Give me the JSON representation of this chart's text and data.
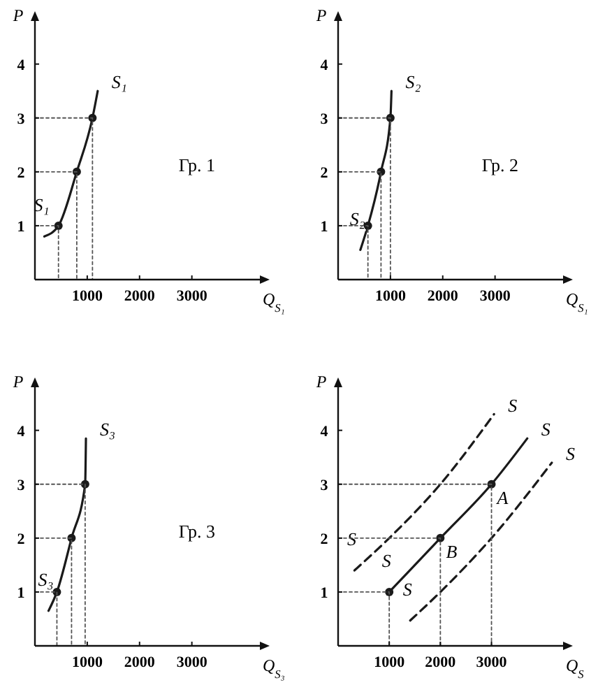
{
  "chart_data": [
    {
      "type": "line",
      "xlabel": "Q$_{S₁}$",
      "ylabel": "P",
      "xlim": [
        0,
        4300
      ],
      "ylim": [
        0,
        4.8
      ],
      "xticks": [
        1000,
        2000,
        3000
      ],
      "yticks": [
        1,
        2,
        3,
        4
      ],
      "annotations": [
        "Гр. 1"
      ],
      "series": [
        {
          "name": "S₁",
          "marker": "none",
          "color": "#1a1a1a",
          "x": [
            180,
            450,
            800,
            1100,
            1200
          ],
          "values": [
            0.8,
            1,
            2,
            3,
            3.5
          ]
        },
        {
          "type": "scatter",
          "marker": "circle",
          "color": "#1a1a1a",
          "x": [
            450,
            800,
            1100
          ],
          "values": [
            1,
            2,
            3
          ]
        },
        {
          "marker": "none",
          "line_style": "dotted",
          "color": "#555555",
          "x": [
            0,
            450,
            450
          ],
          "values": [
            1,
            1,
            0
          ]
        },
        {
          "marker": "none",
          "line_style": "dotted",
          "color": "#555555",
          "x": [
            0,
            800,
            800
          ],
          "values": [
            2,
            2,
            0
          ]
        },
        {
          "marker": "none",
          "line_style": "dotted",
          "color": "#555555",
          "x": [
            0,
            1100,
            1100
          ],
          "values": [
            3,
            3,
            0
          ]
        }
      ]
    },
    {
      "type": "line",
      "xlabel": "Q$_{S₁}$",
      "ylabel": "P",
      "xlim": [
        0,
        4300
      ],
      "ylim": [
        0,
        4.8
      ],
      "xticks": [
        1000,
        2000,
        3000
      ],
      "yticks": [
        1,
        2,
        3,
        4
      ],
      "annotations": [
        "Гр. 2"
      ],
      "series": [
        {
          "name": "S₂",
          "marker": "none",
          "color": "#1a1a1a",
          "x": [
            425,
            570,
            820,
            1000,
            1020
          ],
          "values": [
            0.55,
            1,
            2,
            3,
            3.5
          ]
        },
        {
          "type": "scatter",
          "marker": "circle",
          "color": "#1a1a1a",
          "x": [
            570,
            820,
            1000
          ],
          "values": [
            1,
            2,
            3
          ]
        },
        {
          "marker": "none",
          "line_style": "dotted",
          "color": "#555555",
          "x": [
            0,
            570,
            570
          ],
          "values": [
            1,
            1,
            0
          ]
        },
        {
          "marker": "none",
          "line_style": "dotted",
          "color": "#555555",
          "x": [
            0,
            820,
            820
          ],
          "values": [
            2,
            2,
            0
          ]
        },
        {
          "marker": "none",
          "line_style": "dotted",
          "color": "#555555",
          "x": [
            0,
            1000,
            1000
          ],
          "values": [
            3,
            3,
            0
          ]
        }
      ]
    },
    {
      "type": "line",
      "xlabel": "Q$_{S₃}$",
      "ylabel": "P",
      "xlim": [
        0,
        4300
      ],
      "ylim": [
        0,
        4.8
      ],
      "xticks": [
        1000,
        2000,
        3000
      ],
      "yticks": [
        1,
        2,
        3,
        4
      ],
      "annotations": [
        "Гр. 3"
      ],
      "series": [
        {
          "name": "S₃",
          "marker": "none",
          "color": "#1a1a1a",
          "x": [
            260,
            420,
            700,
            960,
            975
          ],
          "values": [
            0.65,
            1,
            2,
            3,
            3.85
          ]
        },
        {
          "type": "scatter",
          "marker": "circle",
          "color": "#1a1a1a",
          "x": [
            420,
            700,
            960
          ],
          "values": [
            1,
            2,
            3
          ]
        },
        {
          "marker": "none",
          "line_style": "dotted",
          "color": "#555555",
          "x": [
            0,
            420,
            420
          ],
          "values": [
            1,
            1,
            0
          ]
        },
        {
          "marker": "none",
          "line_style": "dotted",
          "color": "#555555",
          "x": [
            0,
            700,
            700
          ],
          "values": [
            2,
            2,
            0
          ]
        },
        {
          "marker": "none",
          "line_style": "dotted",
          "color": "#555555",
          "x": [
            0,
            960,
            960
          ],
          "values": [
            3,
            3,
            0
          ]
        }
      ]
    },
    {
      "type": "line",
      "xlabel": "Q$_{S}$",
      "ylabel": "P",
      "xlim": [
        0,
        4400
      ],
      "ylim": [
        0,
        4.8
      ],
      "xticks": [
        1000,
        2000,
        3000
      ],
      "yticks": [
        1,
        2,
        3,
        4
      ],
      "annotations": [
        {
          "text": "A",
          "x": 3000,
          "y": 3
        },
        {
          "text": "B",
          "x": 2000,
          "y": 2
        }
      ],
      "series": [
        {
          "name": "S",
          "marker": "none",
          "color": "#1a1a1a",
          "x": [
            1000,
            2000,
            3000,
            3700
          ],
          "values": [
            1,
            2,
            3,
            3.85
          ]
        },
        {
          "type": "scatter",
          "marker": "circle",
          "color": "#1a1a1a",
          "x": [
            1000,
            2000,
            3000
          ],
          "values": [
            1,
            2,
            3
          ]
        },
        {
          "name": "S",
          "marker": "none",
          "line_style": "dashed",
          "color": "#1a1a1a",
          "x": [
            320,
            1000,
            2000,
            3050
          ],
          "values": [
            1.4,
            2,
            3,
            4.3
          ]
        },
        {
          "name": "S",
          "marker": "none",
          "line_style": "dashed",
          "color": "#1a1a1a",
          "x": [
            1410,
            2000,
            3000,
            4180
          ],
          "values": [
            0.47,
            1,
            2,
            3.4
          ]
        },
        {
          "marker": "none",
          "line_style": "dotted",
          "color": "#555555",
          "x": [
            0,
            1000,
            1000
          ],
          "values": [
            1,
            1,
            0
          ]
        },
        {
          "marker": "none",
          "line_style": "dotted",
          "color": "#555555",
          "x": [
            0,
            2000,
            2000
          ],
          "values": [
            2,
            2,
            0
          ]
        },
        {
          "marker": "none",
          "line_style": "dotted",
          "color": "#555555",
          "x": [
            0,
            3000,
            3000
          ],
          "values": [
            3,
            3,
            0
          ]
        }
      ]
    }
  ]
}
